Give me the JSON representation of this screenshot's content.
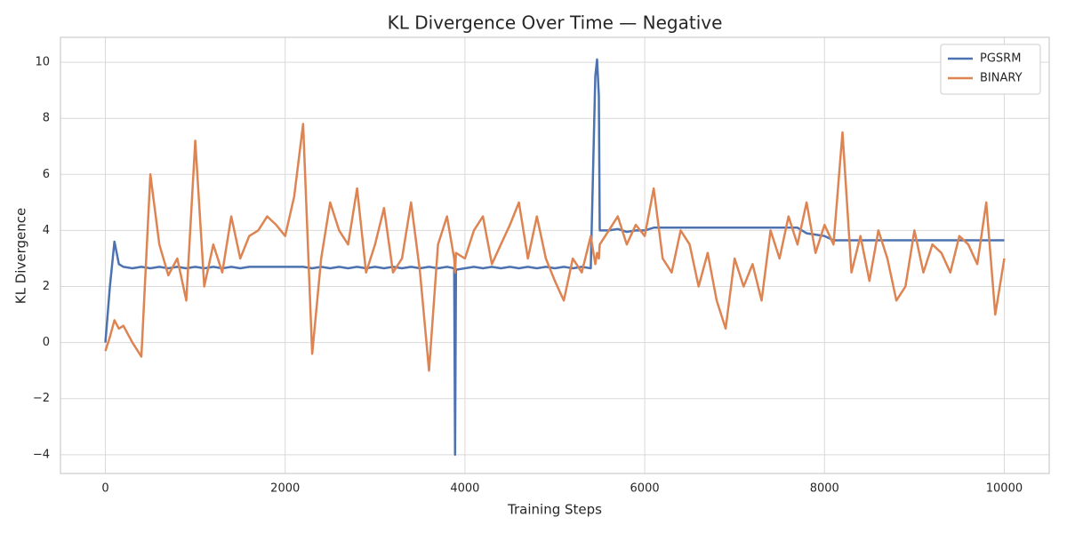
{
  "chart_data": {
    "type": "line",
    "title": "KL Divergence Over Time — Negative",
    "xlabel": "Training Steps",
    "ylabel": "KL Divergence",
    "x": [
      0,
      50,
      100,
      150,
      200,
      300,
      400,
      500,
      600,
      700,
      800,
      900,
      1000,
      1100,
      1200,
      1300,
      1400,
      1500,
      1600,
      1700,
      1800,
      1900,
      2000,
      2100,
      2200,
      2300,
      2400,
      2500,
      2600,
      2700,
      2800,
      2900,
      3000,
      3100,
      3200,
      3300,
      3400,
      3500,
      3600,
      3700,
      3800,
      3880,
      3890,
      3900,
      4000,
      4100,
      4200,
      4300,
      4400,
      4500,
      4600,
      4700,
      4800,
      4900,
      5000,
      5100,
      5200,
      5300,
      5400,
      5450,
      5470,
      5490,
      5500,
      5600,
      5700,
      5800,
      5900,
      6000,
      6100,
      6200,
      6300,
      6400,
      6500,
      6600,
      6700,
      6800,
      6900,
      7000,
      7100,
      7200,
      7300,
      7400,
      7500,
      7600,
      7700,
      7800,
      7900,
      8000,
      8100,
      8200,
      8300,
      8400,
      8500,
      8600,
      8700,
      8800,
      8900,
      9000,
      9100,
      9200,
      9300,
      9400,
      9500,
      9600,
      9700,
      9800,
      9900,
      10000
    ],
    "series": [
      {
        "name": "PGSRM",
        "color": "#4c72b0",
        "values": [
          0,
          2.0,
          3.6,
          2.8,
          2.7,
          2.65,
          2.7,
          2.65,
          2.7,
          2.65,
          2.7,
          2.65,
          2.7,
          2.65,
          2.7,
          2.65,
          2.7,
          2.65,
          2.7,
          2.7,
          2.7,
          2.7,
          2.7,
          2.7,
          2.7,
          2.65,
          2.7,
          2.65,
          2.7,
          2.65,
          2.7,
          2.65,
          2.7,
          2.65,
          2.7,
          2.65,
          2.7,
          2.65,
          2.7,
          2.65,
          2.7,
          2.65,
          -4,
          2.6,
          2.65,
          2.7,
          2.65,
          2.7,
          2.65,
          2.7,
          2.65,
          2.7,
          2.65,
          2.7,
          2.65,
          2.7,
          2.65,
          2.7,
          2.65,
          9.5,
          10.1,
          8.8,
          4.0,
          4.0,
          4.05,
          3.95,
          4.0,
          4.0,
          4.1,
          4.1,
          4.1,
          4.1,
          4.1,
          4.1,
          4.1,
          4.1,
          4.1,
          4.1,
          4.1,
          4.1,
          4.1,
          4.1,
          4.1,
          4.1,
          4.1,
          3.9,
          3.85,
          3.8,
          3.65,
          3.65,
          3.65,
          3.65,
          3.65,
          3.65,
          3.65,
          3.65,
          3.65,
          3.65,
          3.65,
          3.65,
          3.65,
          3.65,
          3.65,
          3.65,
          3.65,
          3.65,
          3.65,
          3.65
        ]
      },
      {
        "name": "BINARY",
        "color": "#dd8452",
        "values": [
          -0.3,
          0.2,
          0.8,
          0.5,
          0.6,
          0.0,
          -0.5,
          6.0,
          3.5,
          2.4,
          3.0,
          1.5,
          7.2,
          2.0,
          3.5,
          2.5,
          4.5,
          3.0,
          3.8,
          4.0,
          4.5,
          4.2,
          3.8,
          5.2,
          7.8,
          -0.4,
          3.0,
          5.0,
          4.0,
          3.5,
          5.5,
          2.5,
          3.5,
          4.8,
          2.5,
          3.0,
          5.0,
          2.5,
          -1.0,
          3.5,
          4.5,
          3.0,
          2.5,
          3.2,
          3.0,
          4.0,
          4.5,
          2.8,
          3.5,
          4.2,
          5.0,
          3.0,
          4.5,
          3.0,
          2.2,
          1.5,
          3.0,
          2.5,
          3.8,
          2.8,
          3.2,
          3.0,
          3.5,
          4.0,
          4.5,
          3.5,
          4.2,
          3.8,
          5.5,
          3.0,
          2.5,
          4.0,
          3.5,
          2.0,
          3.2,
          1.5,
          0.5,
          3.0,
          2.0,
          2.8,
          1.5,
          4.0,
          3.0,
          4.5,
          3.5,
          5.0,
          3.2,
          4.2,
          3.5,
          7.5,
          2.5,
          3.8,
          2.2,
          4.0,
          3.0,
          1.5,
          2.0,
          4.0,
          2.5,
          3.5,
          3.2,
          2.5,
          3.8,
          3.5,
          2.8,
          5.0,
          1.0,
          3.0
        ]
      }
    ],
    "xlim": [
      -500,
      10500
    ],
    "ylim": [
      -4.67,
      10.89
    ],
    "xticks": [
      0,
      2000,
      4000,
      6000,
      8000,
      10000
    ],
    "yticks": [
      {
        "value": -4,
        "label": "−4"
      },
      {
        "value": -2,
        "label": "−2"
      },
      0,
      2,
      4,
      6,
      8,
      10
    ],
    "grid": true,
    "legend": "upper right"
  }
}
